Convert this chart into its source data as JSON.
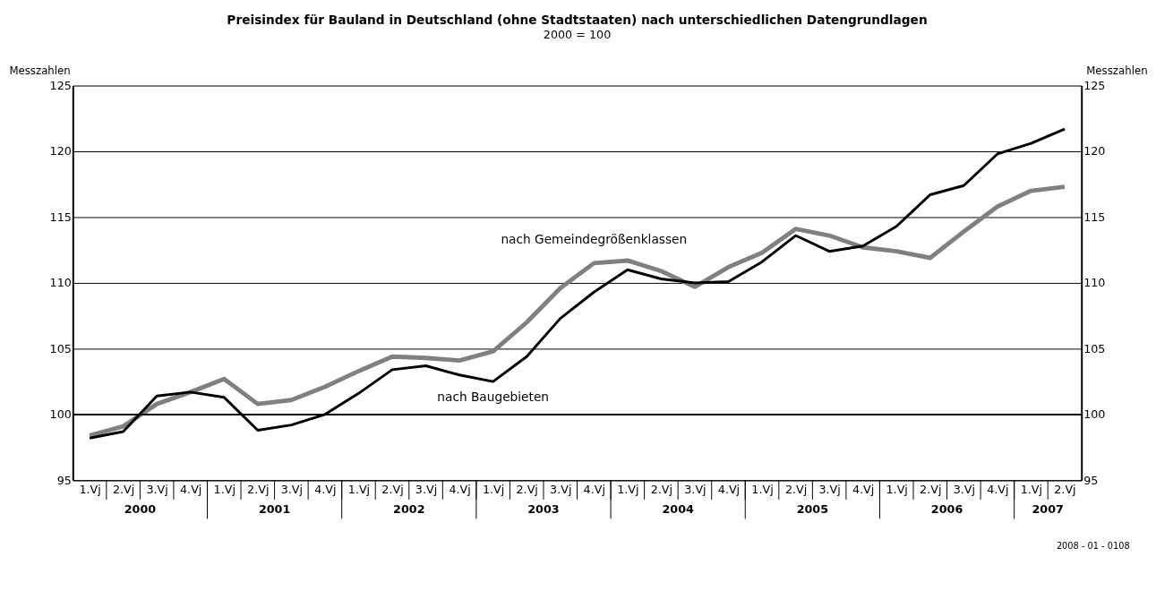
{
  "chart_data": {
    "type": "line",
    "title": "Preisindex für Bauland in Deutschland (ohne Stadtstaaten) nach unterschiedlichen Datengrundlagen",
    "subtitle": "2000 = 100",
    "ylabel": "Messzahlen",
    "y2label": "Messzahlen",
    "categories": [
      "1.Vj",
      "2.Vj",
      "3.Vj",
      "4.Vj",
      "1.Vj",
      "2.Vj",
      "3.Vj",
      "4.Vj",
      "1.Vj",
      "2.Vj",
      "3.Vj",
      "4.Vj",
      "1.Vj",
      "2.Vj",
      "3.Vj",
      "4.Vj",
      "1.Vj",
      "2.Vj",
      "3.Vj",
      "4.Vj",
      "1.Vj",
      "2.Vj",
      "3.Vj",
      "4.Vj",
      "1.Vj",
      "2.Vj",
      "3.Vj",
      "4.Vj",
      "1.Vj",
      "2.Vj"
    ],
    "series": [
      {
        "name": "nach Gemeindegrößenklassen",
        "color": "#808080",
        "values": [
          98.4,
          99.1,
          100.8,
          101.7,
          102.7,
          100.8,
          101.1,
          102.1,
          103.3,
          104.4,
          104.3,
          104.1,
          104.8,
          107.0,
          109.6,
          111.5,
          111.7,
          110.9,
          109.7,
          111.2,
          112.3,
          114.1,
          113.6,
          112.7,
          112.4,
          111.9,
          113.9,
          115.8,
          117.0,
          117.3
        ]
      },
      {
        "name": "nach Baugebieten",
        "color": "#000000",
        "values": [
          98.2,
          98.7,
          101.4,
          101.7,
          101.3,
          98.8,
          99.2,
          100.0,
          101.6,
          103.4,
          103.7,
          103.0,
          102.5,
          104.4,
          107.3,
          109.3,
          111.0,
          110.3,
          110.0,
          110.1,
          111.6,
          113.6,
          112.4,
          112.8,
          114.3,
          116.7,
          117.4,
          119.8,
          120.6,
          121.7
        ]
      }
    ],
    "ylim": [
      95,
      125
    ],
    "yticks": [
      95,
      100,
      105,
      110,
      115,
      120,
      125
    ],
    "y2lim": [
      95,
      125
    ],
    "y2ticks": [
      95,
      100,
      105,
      110,
      115,
      120,
      125
    ],
    "ref_lines": [
      {
        "axis": "y",
        "value": 100,
        "color": "#000000"
      }
    ],
    "grid": "y",
    "legend": false,
    "line_style": "solid",
    "marker": "none",
    "annotations": [
      "2000",
      "2001",
      "2002",
      "2003",
      "2004",
      "2005",
      "2006",
      "2007",
      "2008 - 01 - 0108"
    ]
  }
}
